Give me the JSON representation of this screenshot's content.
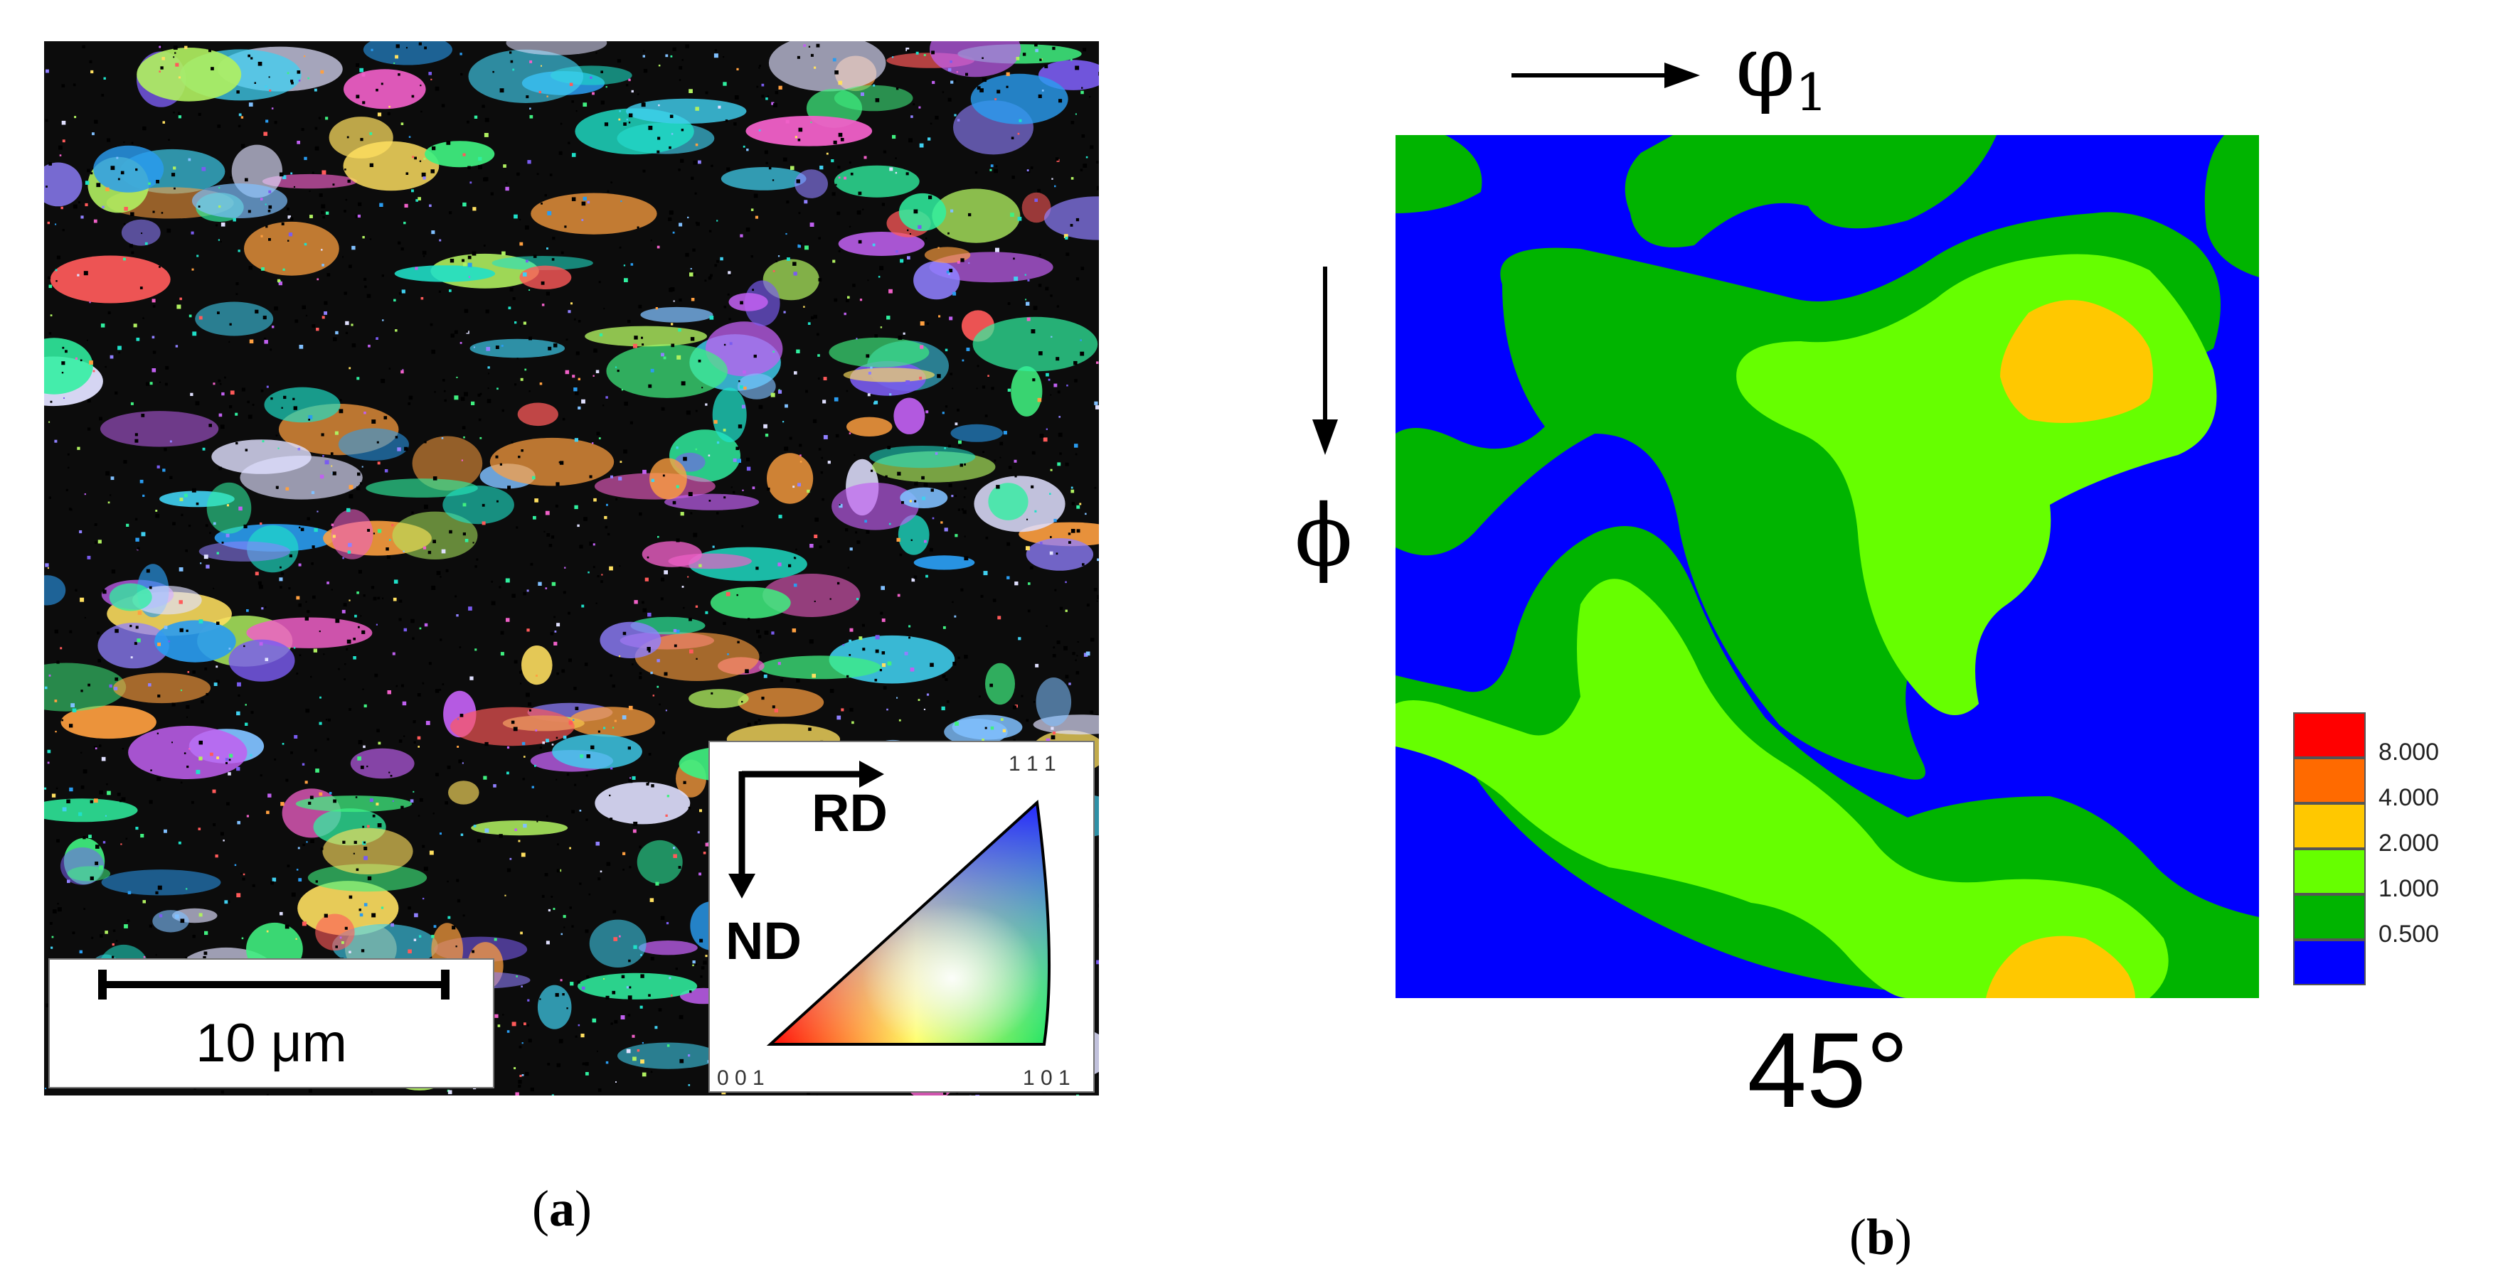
{
  "panel_a": {
    "caption_open": "(",
    "caption_letter": "a",
    "caption_close": ")",
    "scale_bar_label": "10 μm",
    "ipf_key": {
      "rd_label": "RD",
      "nd_label": "ND",
      "corner_001": "0 0 1",
      "corner_101": "1 0 1",
      "corner_111": "1 1 1"
    },
    "grain_colors": [
      "#1fe0c8",
      "#2a9cf0",
      "#7a5cf0",
      "#c060f0",
      "#f060c8",
      "#ff5a5a",
      "#ffa040",
      "#ffe060",
      "#b0f060",
      "#40f080",
      "#40d0f0",
      "#e0e0ff",
      "#9080ff",
      "#30f0a0",
      "#80c0ff"
    ]
  },
  "panel_b": {
    "caption_open": "(",
    "caption_letter": "b",
    "caption_close": ")",
    "axis_phi1_symbol": "φ",
    "axis_phi1_subscript": "1",
    "axis_phi_symbol": "ϕ",
    "section_angle": "45°",
    "colors": {
      "level_0": "#0000ff",
      "level_1": "#00b400",
      "level_2": "#66ff00",
      "level_3": "#ffc800",
      "level_4": "#ff6a00",
      "level_5": "#ff0000"
    },
    "legend": [
      {
        "value": "8.000",
        "color": "#ff0000"
      },
      {
        "value": "4.000",
        "color": "#ff6a00"
      },
      {
        "value": "2.000",
        "color": "#ffc800"
      },
      {
        "value": "1.000",
        "color": "#66ff00"
      },
      {
        "value": "0.500",
        "color": "#00b400"
      },
      {
        "value": "",
        "color": "#0000ff"
      }
    ]
  }
}
